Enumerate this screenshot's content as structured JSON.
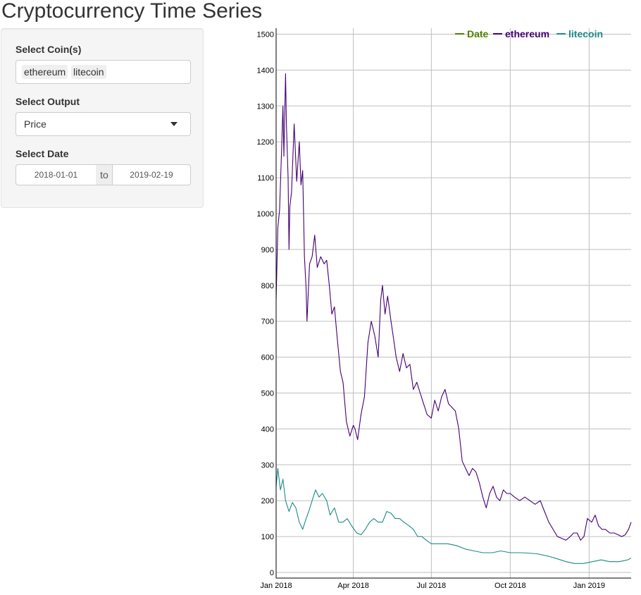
{
  "page": {
    "title": "Cryptocurrency Time Series"
  },
  "sidebar": {
    "coins": {
      "label": "Select Coin(s)",
      "selected": [
        "ethereum",
        "litecoin"
      ]
    },
    "output": {
      "label": "Select Output",
      "value": "Price"
    },
    "date": {
      "label": "Select Date",
      "start": "2018-01-01",
      "separator": "to",
      "end": "2019-02-19"
    }
  },
  "chart_data": {
    "type": "line",
    "title": "",
    "xlabel": "",
    "ylabel": "",
    "ylim": [
      0,
      1520
    ],
    "xlim": [
      "2018-01-01",
      "2019-02-19"
    ],
    "grid": true,
    "legend_position": "top-right",
    "legend": [
      "Date",
      "ethereum",
      "litecoin"
    ],
    "legend_colors": [
      "#4d8000",
      "#440072",
      "#1e8a85"
    ],
    "yticks": [
      0,
      100,
      200,
      300,
      400,
      500,
      600,
      700,
      800,
      900,
      1000,
      1100,
      1200,
      1300,
      1400,
      1500
    ],
    "xticks": [
      {
        "date": "2018-01-01",
        "label": "Jan 2018"
      },
      {
        "date": "2018-04-01",
        "label": "Apr 2018"
      },
      {
        "date": "2018-07-01",
        "label": "Jul 2018"
      },
      {
        "date": "2018-10-01",
        "label": "Oct 2018"
      },
      {
        "date": "2019-01-01",
        "label": "Jan 2019"
      }
    ],
    "series": [
      {
        "name": "ethereum",
        "color": "#440072",
        "x": [
          "2018-01-01",
          "2018-01-03",
          "2018-01-05",
          "2018-01-07",
          "2018-01-09",
          "2018-01-10",
          "2018-01-12",
          "2018-01-13",
          "2018-01-15",
          "2018-01-16",
          "2018-01-17",
          "2018-01-19",
          "2018-01-22",
          "2018-01-25",
          "2018-01-28",
          "2018-01-30",
          "2018-02-01",
          "2018-02-03",
          "2018-02-05",
          "2018-02-06",
          "2018-02-09",
          "2018-02-12",
          "2018-02-15",
          "2018-02-18",
          "2018-02-22",
          "2018-02-26",
          "2018-03-01",
          "2018-03-04",
          "2018-03-07",
          "2018-03-10",
          "2018-03-13",
          "2018-03-17",
          "2018-03-20",
          "2018-03-24",
          "2018-03-28",
          "2018-04-01",
          "2018-04-03",
          "2018-04-06",
          "2018-04-10",
          "2018-04-14",
          "2018-04-18",
          "2018-04-22",
          "2018-04-26",
          "2018-04-30",
          "2018-05-03",
          "2018-05-05",
          "2018-05-08",
          "2018-05-11",
          "2018-05-15",
          "2018-05-18",
          "2018-05-21",
          "2018-05-25",
          "2018-05-29",
          "2018-06-02",
          "2018-06-06",
          "2018-06-10",
          "2018-06-14",
          "2018-06-18",
          "2018-06-22",
          "2018-06-26",
          "2018-07-01",
          "2018-07-05",
          "2018-07-09",
          "2018-07-13",
          "2018-07-17",
          "2018-07-21",
          "2018-07-25",
          "2018-07-29",
          "2018-08-02",
          "2018-08-06",
          "2018-08-10",
          "2018-08-14",
          "2018-08-18",
          "2018-08-22",
          "2018-08-26",
          "2018-08-30",
          "2018-09-03",
          "2018-09-07",
          "2018-09-11",
          "2018-09-15",
          "2018-09-19",
          "2018-09-23",
          "2018-09-27",
          "2018-10-01",
          "2018-10-06",
          "2018-10-12",
          "2018-10-18",
          "2018-10-24",
          "2018-10-30",
          "2018-11-05",
          "2018-11-10",
          "2018-11-15",
          "2018-11-20",
          "2018-11-25",
          "2018-11-30",
          "2018-12-05",
          "2018-12-10",
          "2018-12-14",
          "2018-12-18",
          "2018-12-22",
          "2018-12-26",
          "2018-12-30",
          "2019-01-04",
          "2019-01-08",
          "2019-01-12",
          "2019-01-16",
          "2019-01-20",
          "2019-01-25",
          "2019-01-30",
          "2019-02-04",
          "2019-02-08",
          "2019-02-12",
          "2019-02-16",
          "2019-02-19"
        ],
        "y": [
          760,
          960,
          1010,
          1150,
          1300,
          1160,
          1390,
          1250,
          1100,
          900,
          1020,
          1060,
          1250,
          1090,
          1200,
          1080,
          1120,
          880,
          790,
          700,
          860,
          880,
          940,
          850,
          880,
          860,
          870,
          800,
          720,
          740,
          660,
          560,
          530,
          420,
          380,
          410,
          400,
          370,
          440,
          490,
          640,
          700,
          660,
          600,
          760,
          800,
          720,
          770,
          700,
          650,
          600,
          560,
          610,
          570,
          580,
          510,
          530,
          500,
          470,
          440,
          430,
          480,
          450,
          490,
          510,
          470,
          460,
          450,
          400,
          310,
          290,
          270,
          290,
          280,
          250,
          210,
          180,
          220,
          240,
          210,
          200,
          230,
          220,
          220,
          210,
          200,
          210,
          200,
          190,
          200,
          170,
          140,
          120,
          100,
          95,
          90,
          100,
          110,
          110,
          90,
          100,
          150,
          140,
          160,
          130,
          120,
          120,
          110,
          110,
          105,
          100,
          105,
          120,
          140
        ]
      },
      {
        "name": "litecoin",
        "color": "#1e8a85",
        "x": [
          "2018-01-01",
          "2018-01-03",
          "2018-01-06",
          "2018-01-09",
          "2018-01-12",
          "2018-01-16",
          "2018-01-20",
          "2018-01-24",
          "2018-01-28",
          "2018-02-01",
          "2018-02-05",
          "2018-02-08",
          "2018-02-12",
          "2018-02-16",
          "2018-02-20",
          "2018-02-24",
          "2018-03-01",
          "2018-03-05",
          "2018-03-10",
          "2018-03-15",
          "2018-03-20",
          "2018-03-25",
          "2018-03-30",
          "2018-04-05",
          "2018-04-10",
          "2018-04-15",
          "2018-04-20",
          "2018-04-25",
          "2018-04-30",
          "2018-05-05",
          "2018-05-10",
          "2018-05-15",
          "2018-05-20",
          "2018-05-25",
          "2018-05-30",
          "2018-06-05",
          "2018-06-10",
          "2018-06-15",
          "2018-06-20",
          "2018-06-25",
          "2018-07-01",
          "2018-07-10",
          "2018-07-20",
          "2018-07-30",
          "2018-08-10",
          "2018-08-20",
          "2018-08-30",
          "2018-09-10",
          "2018-09-20",
          "2018-10-01",
          "2018-10-15",
          "2018-11-01",
          "2018-11-15",
          "2018-11-25",
          "2018-12-05",
          "2018-12-15",
          "2018-12-25",
          "2019-01-05",
          "2019-01-15",
          "2019-01-25",
          "2019-02-05",
          "2019-02-15",
          "2019-02-19"
        ],
        "y": [
          240,
          290,
          230,
          260,
          200,
          170,
          195,
          180,
          140,
          120,
          150,
          170,
          200,
          230,
          210,
          220,
          200,
          160,
          180,
          140,
          140,
          150,
          130,
          110,
          105,
          120,
          140,
          150,
          140,
          140,
          170,
          165,
          150,
          150,
          140,
          130,
          120,
          100,
          100,
          90,
          80,
          80,
          80,
          75,
          65,
          60,
          55,
          55,
          60,
          55,
          55,
          52,
          45,
          38,
          30,
          25,
          25,
          30,
          35,
          30,
          30,
          35,
          40
        ]
      }
    ]
  }
}
